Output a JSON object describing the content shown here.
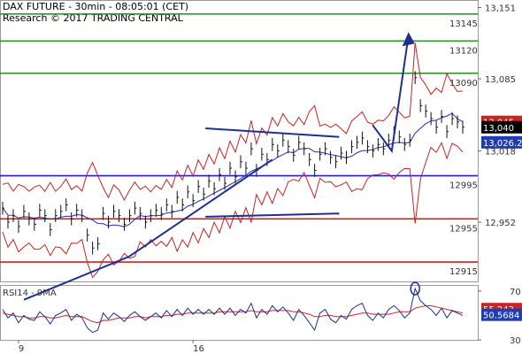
{
  "header": {
    "line1": "DAX FUTURE - 30min - 08:05:01 (CET)",
    "line2": "Research © 2017 TRADING CENTRAL"
  },
  "chart_data": {
    "type": "line",
    "main": {
      "ylim": [
        12897,
        13158
      ],
      "yticks": [
        {
          "value": 13151,
          "label": "13,151"
        },
        {
          "value": 13085,
          "label": "13,085"
        },
        {
          "value": 13018,
          "label": "13,018"
        },
        {
          "value": 12952,
          "label": "12,952"
        }
      ],
      "levels": [
        {
          "value": 13145,
          "label": "13145",
          "color": "#2e9a2e"
        },
        {
          "value": 13120,
          "label": "13120",
          "color": "#2e9a2e"
        },
        {
          "value": 13090,
          "label": "13090",
          "color": "#2e9a2e"
        },
        {
          "value": 12995,
          "label": "12995",
          "color": "#2222cc"
        },
        {
          "value": 12955,
          "label": "12955",
          "color": "#cc2222"
        },
        {
          "value": 12915,
          "label": "12915",
          "color": "#cc2222"
        }
      ],
      "value_tags": [
        {
          "value": 13045,
          "label": "13,045",
          "bg": "#cc2222",
          "fg": "#ffffff"
        },
        {
          "value": 13040,
          "label": "13,040",
          "bg": "#000000",
          "fg": "#ffffff"
        },
        {
          "value": 13026,
          "label": "13,026.2",
          "bg": "#1f3cb4",
          "fg": "#ffffff"
        }
      ],
      "trendlines": [
        {
          "from": [
            0.05,
            12880
          ],
          "to": [
            0.27,
            12920
          ],
          "color": "#1f2f8f"
        },
        {
          "from": [
            0.27,
            12920
          ],
          "to": [
            0.57,
            13010
          ],
          "color": "#1f2f8f"
        },
        {
          "from": [
            0.43,
            13039
          ],
          "to": [
            0.71,
            13031
          ],
          "color": "#1f2f8f"
        },
        {
          "from": [
            0.43,
            12957
          ],
          "to": [
            0.71,
            12960
          ],
          "color": "#1f2f8f"
        }
      ],
      "projection": [
        [
          0.78,
          13042
        ],
        [
          0.82,
          13018
        ],
        [
          0.855,
          13125
        ]
      ],
      "close": [
        12965,
        12952,
        12958,
        12948,
        12962,
        12955,
        12950,
        12963,
        12958,
        12945,
        12958,
        12962,
        12968,
        12955,
        12963,
        12958,
        12940,
        12928,
        12932,
        12960,
        12952,
        12962,
        12958,
        12950,
        12958,
        12965,
        12960,
        12952,
        12958,
        12963,
        12960,
        12968,
        12962,
        12975,
        12968,
        12980,
        12972,
        12985,
        12978,
        12990,
        12983,
        12996,
        12988,
        13002,
        12994,
        13008,
        13002,
        13020,
        13000,
        13015,
        13010,
        13024,
        13018,
        13028,
        13022,
        13014,
        13026,
        13020,
        13010,
        13000,
        13015,
        13020,
        13012,
        13008,
        13016,
        13012,
        13022,
        13026,
        13030,
        13022,
        13018,
        13024,
        13020,
        13028,
        13035,
        13031,
        13024,
        13028,
        13086,
        13060,
        13055,
        13048,
        13040,
        13050,
        13036,
        13048,
        13045,
        13040
      ]
    },
    "rsi": {
      "title": "RSI14 - 9MA",
      "ylim": [
        30,
        75
      ],
      "yticks": [
        {
          "value": 70,
          "label": "70"
        },
        {
          "value": 30,
          "label": "30"
        }
      ],
      "value_tags": [
        {
          "value": 55.24,
          "label": "55.243",
          "bg": "#cc2222",
          "fg": "#ffffff"
        },
        {
          "value": 50.57,
          "label": "50.5684",
          "bg": "#1f3cb4",
          "fg": "#ffffff"
        }
      ],
      "rsi": [
        55,
        48,
        52,
        44,
        50,
        47,
        46,
        53,
        49,
        43,
        50,
        52,
        55,
        46,
        51,
        48,
        40,
        36,
        38,
        52,
        47,
        52,
        49,
        45,
        50,
        53,
        49,
        46,
        49,
        52,
        48,
        54,
        49,
        55,
        50,
        56,
        51,
        55,
        51,
        55,
        51,
        56,
        51,
        56,
        50,
        55,
        52,
        60,
        48,
        55,
        51,
        58,
        53,
        57,
        52,
        46,
        55,
        50,
        44,
        38,
        52,
        55,
        47,
        44,
        50,
        47,
        55,
        58,
        60,
        50,
        46,
        52,
        48,
        55,
        58,
        54,
        48,
        52,
        72,
        62,
        58,
        55,
        50,
        56,
        48,
        54,
        52,
        50
      ],
      "rsi_ma": [
        52,
        51,
        50,
        49,
        49,
        48,
        48,
        49,
        49,
        48,
        48,
        49,
        50,
        49,
        49,
        49,
        47,
        45,
        44,
        46,
        46,
        47,
        48,
        48,
        48,
        49,
        49,
        48,
        49,
        49,
        49,
        50,
        50,
        51,
        51,
        52,
        52,
        52,
        52,
        52,
        52,
        53,
        53,
        53,
        53,
        53,
        53,
        54,
        53,
        53,
        53,
        54,
        54,
        54,
        54,
        53,
        53,
        52,
        51,
        49,
        49,
        50,
        50,
        49,
        49,
        49,
        50,
        51,
        52,
        52,
        51,
        51,
        51,
        51,
        52,
        53,
        53,
        53,
        56,
        57,
        58,
        58,
        57,
        56,
        55,
        54,
        53,
        52
      ]
    },
    "xaxis": {
      "ticks": [
        {
          "index": 3,
          "label": "9"
        },
        {
          "index": 36,
          "label": "16"
        }
      ]
    }
  }
}
